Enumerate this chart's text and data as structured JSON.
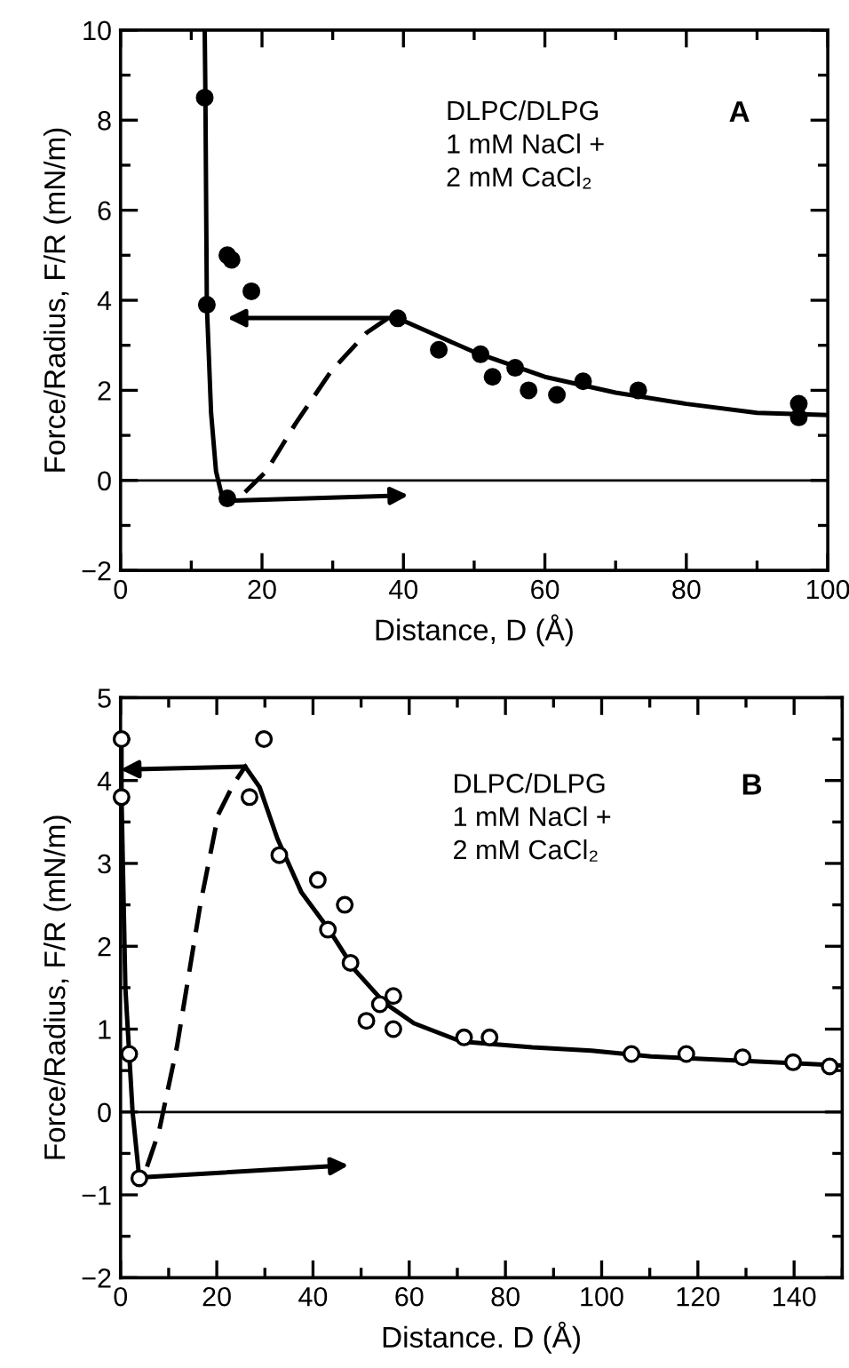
{
  "chart_data": [
    {
      "type": "scatter",
      "xlabel": "Distance, D (Å)",
      "ylabel": "Force/Radius, F/R (mN/m)",
      "xlim": [
        0,
        100
      ],
      "ylim": [
        -2,
        10
      ],
      "xticks": [
        0,
        20,
        40,
        60,
        80,
        100
      ],
      "yticks": [
        -2,
        0,
        2,
        4,
        6,
        8,
        10
      ],
      "grid": false,
      "legend": false,
      "annotations": [
        "DLPC/DLPG\n1 mM NaCl +\n2 mM CaCl₂",
        "A"
      ],
      "ref_lines": [
        {
          "axis": "y",
          "value": 0,
          "color": "#000000"
        }
      ],
      "series": [
        {
          "marker": "circle",
          "color": "#000000",
          "x": [
            11.9,
            12.2,
            15.1,
            15.1,
            15.7,
            18.5,
            39.2,
            45.0,
            50.9,
            52.6,
            55.8,
            57.7,
            61.7,
            65.4,
            73.2,
            95.9,
            95.9
          ],
          "values": [
            8.5,
            3.9,
            -0.4,
            5.0,
            4.9,
            4.2,
            3.6,
            2.9,
            2.8,
            2.3,
            2.5,
            2.0,
            1.9,
            2.2,
            2.0,
            1.7,
            1.4
          ]
        },
        {
          "type": "line",
          "color": "#000000",
          "line_style": "solid",
          "x": [
            11.9,
            12.0,
            12.2,
            12.8,
            13.5,
            14.5
          ],
          "values": [
            10,
            8.5,
            3.9,
            1.5,
            0.2,
            -0.45
          ]
        },
        {
          "type": "line",
          "color": "#000000",
          "line_style": "solid",
          "x": [
            39.2,
            50,
            60,
            70,
            80,
            90,
            100
          ],
          "values": [
            3.6,
            2.85,
            2.3,
            1.95,
            1.7,
            1.5,
            1.45
          ]
        },
        {
          "type": "line",
          "color": "#000000",
          "line_style": "dashed",
          "x": [
            17.6,
            20.6,
            24.7,
            29.8,
            34.8,
            37.8
          ],
          "values": [
            -0.26,
            0.2,
            1.25,
            2.43,
            3.28,
            3.6
          ]
        }
      ]
    },
    {
      "type": "scatter",
      "xlabel": "Distance. D (Å)",
      "ylabel": "Force/Radius, F/R (mN/m)",
      "xlim": [
        0,
        150
      ],
      "ylim": [
        -2,
        5
      ],
      "xticks": [
        0,
        20,
        40,
        60,
        80,
        100,
        120,
        140
      ],
      "yticks": [
        -2,
        -1,
        0,
        1,
        2,
        3,
        4,
        5
      ],
      "grid": false,
      "legend": false,
      "annotations": [
        "DLPC/DLPG\n1 mM NaCl +\n2 mM CaCl₂",
        "B"
      ],
      "ref_lines": [
        {
          "axis": "y",
          "value": 0,
          "color": "#000000"
        }
      ],
      "series": [
        {
          "marker": "circle",
          "color": "#ffffff",
          "x": [
            0.2,
            0.2,
            1.8,
            3.9,
            29.8,
            26.8,
            33.0,
            41.0,
            43.1,
            46.6,
            47.8,
            51.1,
            53.9,
            56.7,
            56.7,
            71.4,
            76.7,
            106.2,
            117.6,
            129.3,
            139.8,
            147.4
          ],
          "values": [
            4.5,
            3.8,
            0.7,
            -0.8,
            4.5,
            3.8,
            3.1,
            2.8,
            2.2,
            2.5,
            1.8,
            1.1,
            1.3,
            1.4,
            1.0,
            0.9,
            0.9,
            0.7,
            0.7,
            0.66,
            0.6,
            0.55
          ]
        },
        {
          "type": "line",
          "color": "#000000",
          "line_style": "solid",
          "x": [
            0.2,
            0.2,
            1.0,
            1.8,
            2.5,
            3.9
          ],
          "values": [
            4.5,
            3.8,
            1.5,
            0.7,
            0.0,
            -0.8
          ]
        },
        {
          "type": "line",
          "color": "#000000",
          "line_style": "solid",
          "x": [
            25.9,
            28.9,
            32.6,
            37.6,
            43.1,
            48.6,
            54.8,
            61.0,
            70.8,
            85.6,
            97.9,
            110.2,
            128.7,
            150
          ],
          "values": [
            4.17,
            3.92,
            3.3,
            2.65,
            2.22,
            1.72,
            1.32,
            1.07,
            0.85,
            0.78,
            0.74,
            0.67,
            0.62,
            0.56
          ]
        },
        {
          "type": "line",
          "color": "#000000",
          "line_style": "dashed",
          "x": [
            5.5,
            8.0,
            11.7,
            16.6,
            20.3,
            23.4,
            25.9
          ],
          "values": [
            -0.66,
            -0.23,
            0.78,
            2.51,
            3.59,
            3.95,
            4.17
          ]
        }
      ]
    }
  ]
}
